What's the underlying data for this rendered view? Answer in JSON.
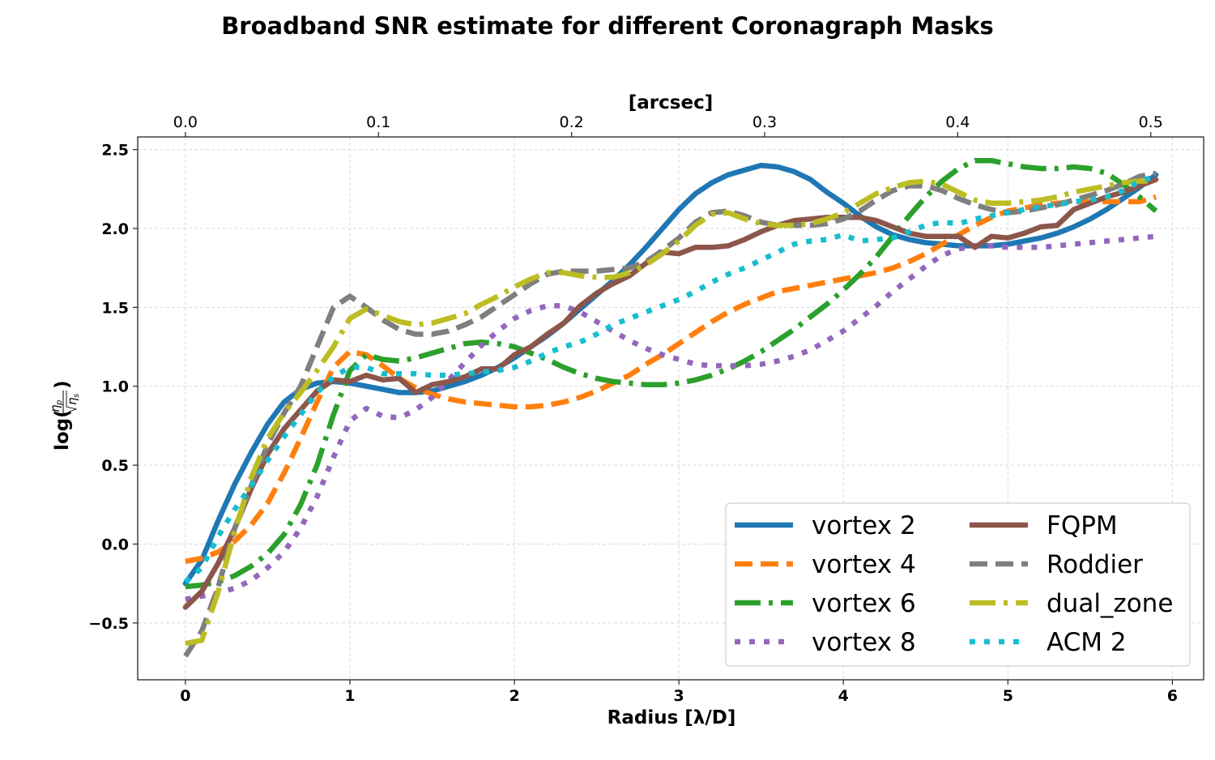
{
  "chart_data": {
    "type": "line",
    "title": "Broadband SNR estimate for different Coronagraph Masks",
    "xlabel": "Radius [λ/D]",
    "ylabel": "log(ηp/√ηs)",
    "ylabel_parts": {
      "prefix": "log(",
      "num": "η",
      "num_sub": "p",
      "den": "η",
      "den_sub": "s",
      "suffix": ")"
    },
    "secondary_xlabel": "[arcsec]",
    "xlim": [
      -0.29,
      6.19
    ],
    "ylim": [
      -0.86,
      2.58
    ],
    "arcsec_per_lambda_d": 0.0852,
    "grid": true,
    "legend_position": "lower-right",
    "legend_columns": 2,
    "x_ticks": [
      0,
      1,
      2,
      3,
      4,
      5,
      6
    ],
    "x_tick_labels": [
      "0",
      "1",
      "2",
      "3",
      "4",
      "5",
      "6"
    ],
    "y_ticks": [
      -0.5,
      0.0,
      0.5,
      1.0,
      1.5,
      2.0,
      2.5
    ],
    "y_tick_labels": [
      "−0.5",
      "0.0",
      "0.5",
      "1.0",
      "1.5",
      "2.0",
      "2.5"
    ],
    "top_ticks": [
      0.0,
      0.1,
      0.2,
      0.3,
      0.4,
      0.5
    ],
    "top_tick_labels": [
      "0.0",
      "0.1",
      "0.2",
      "0.3",
      "0.4",
      "0.5"
    ],
    "x": [
      0,
      0.1,
      0.2,
      0.3,
      0.4,
      0.5,
      0.6,
      0.7,
      0.8,
      0.9,
      1.0,
      1.1,
      1.2,
      1.3,
      1.4,
      1.5,
      1.6,
      1.7,
      1.8,
      1.9,
      2.0,
      2.1,
      2.2,
      2.3,
      2.4,
      2.5,
      2.6,
      2.7,
      2.8,
      2.9,
      3.0,
      3.1,
      3.2,
      3.3,
      3.4,
      3.5,
      3.6,
      3.7,
      3.8,
      3.9,
      4.0,
      4.1,
      4.2,
      4.3,
      4.4,
      4.5,
      4.6,
      4.7,
      4.8,
      4.9,
      5.0,
      5.1,
      5.2,
      5.3,
      5.4,
      5.5,
      5.6,
      5.7,
      5.8,
      5.9
    ],
    "series": [
      {
        "name": "vortex 2",
        "color": "#1f77b4",
        "style": "solid",
        "values": [
          -0.25,
          -0.1,
          0.15,
          0.38,
          0.58,
          0.76,
          0.9,
          0.98,
          1.02,
          1.03,
          1.02,
          1.0,
          0.98,
          0.96,
          0.96,
          0.97,
          1.0,
          1.03,
          1.07,
          1.12,
          1.18,
          1.25,
          1.32,
          1.4,
          1.49,
          1.58,
          1.67,
          1.77,
          1.88,
          2.0,
          2.12,
          2.22,
          2.29,
          2.34,
          2.37,
          2.4,
          2.39,
          2.36,
          2.31,
          2.23,
          2.16,
          2.08,
          2.01,
          1.96,
          1.93,
          1.91,
          1.9,
          1.89,
          1.89,
          1.89,
          1.9,
          1.92,
          1.94,
          1.97,
          2.01,
          2.06,
          2.12,
          2.19,
          2.26,
          2.34
        ]
      },
      {
        "name": "vortex 4",
        "color": "#ff7f0e",
        "style": "dashed",
        "values": [
          -0.11,
          -0.09,
          -0.05,
          0.02,
          0.12,
          0.26,
          0.45,
          0.67,
          0.9,
          1.12,
          1.22,
          1.2,
          1.13,
          1.05,
          0.99,
          0.95,
          0.92,
          0.9,
          0.89,
          0.88,
          0.87,
          0.87,
          0.88,
          0.9,
          0.93,
          0.97,
          1.02,
          1.07,
          1.14,
          1.2,
          1.27,
          1.34,
          1.41,
          1.47,
          1.52,
          1.56,
          1.6,
          1.62,
          1.64,
          1.66,
          1.68,
          1.7,
          1.72,
          1.75,
          1.79,
          1.84,
          1.9,
          1.96,
          2.02,
          2.07,
          2.11,
          2.13,
          2.15,
          2.16,
          2.17,
          2.17,
          2.17,
          2.17,
          2.17,
          2.2
        ]
      },
      {
        "name": "vortex 6",
        "color": "#2ca02c",
        "style": "dashdot",
        "values": [
          -0.27,
          -0.26,
          -0.24,
          -0.2,
          -0.14,
          -0.06,
          0.06,
          0.25,
          0.5,
          0.82,
          1.1,
          1.2,
          1.17,
          1.16,
          1.18,
          1.21,
          1.24,
          1.27,
          1.28,
          1.27,
          1.25,
          1.21,
          1.17,
          1.12,
          1.08,
          1.05,
          1.03,
          1.02,
          1.01,
          1.01,
          1.02,
          1.04,
          1.07,
          1.11,
          1.16,
          1.22,
          1.29,
          1.36,
          1.44,
          1.52,
          1.61,
          1.71,
          1.82,
          1.95,
          2.08,
          2.2,
          2.3,
          2.38,
          2.43,
          2.43,
          2.41,
          2.39,
          2.38,
          2.38,
          2.39,
          2.38,
          2.35,
          2.28,
          2.2,
          2.11
        ]
      },
      {
        "name": "vortex 8",
        "color": "#9467bd",
        "style": "dotted",
        "values": [
          -0.35,
          -0.33,
          -0.31,
          -0.28,
          -0.23,
          -0.15,
          -0.05,
          0.1,
          0.3,
          0.55,
          0.78,
          0.86,
          0.81,
          0.8,
          0.85,
          0.93,
          1.04,
          1.15,
          1.26,
          1.35,
          1.43,
          1.48,
          1.51,
          1.51,
          1.47,
          1.41,
          1.35,
          1.29,
          1.24,
          1.2,
          1.17,
          1.14,
          1.13,
          1.13,
          1.13,
          1.14,
          1.16,
          1.19,
          1.23,
          1.29,
          1.35,
          1.43,
          1.51,
          1.6,
          1.68,
          1.76,
          1.83,
          1.87,
          1.89,
          1.89,
          1.88,
          1.88,
          1.88,
          1.89,
          1.9,
          1.91,
          1.92,
          1.93,
          1.94,
          1.95
        ]
      },
      {
        "name": "FQPM",
        "color": "#8c564b",
        "style": "solid",
        "values": [
          -0.4,
          -0.3,
          -0.12,
          0.1,
          0.35,
          0.57,
          0.73,
          0.85,
          0.97,
          1.04,
          1.03,
          1.07,
          1.04,
          1.05,
          0.96,
          1.01,
          1.03,
          1.06,
          1.11,
          1.11,
          1.2,
          1.25,
          1.33,
          1.4,
          1.51,
          1.59,
          1.65,
          1.7,
          1.78,
          1.85,
          1.84,
          1.88,
          1.88,
          1.89,
          1.93,
          1.98,
          2.02,
          2.05,
          2.06,
          2.07,
          2.07,
          2.07,
          2.05,
          2.01,
          1.97,
          1.95,
          1.95,
          1.95,
          1.88,
          1.95,
          1.94,
          1.97,
          2.01,
          2.02,
          2.12,
          2.16,
          2.2,
          2.23,
          2.27,
          2.31
        ]
      },
      {
        "name": "Roddier",
        "color": "#7f7f7f",
        "style": "dashed",
        "values": [
          -0.71,
          -0.55,
          -0.27,
          0.1,
          0.37,
          0.63,
          0.83,
          1.0,
          1.25,
          1.5,
          1.57,
          1.5,
          1.42,
          1.36,
          1.33,
          1.33,
          1.35,
          1.39,
          1.44,
          1.51,
          1.58,
          1.65,
          1.71,
          1.73,
          1.73,
          1.73,
          1.74,
          1.75,
          1.79,
          1.86,
          1.94,
          2.04,
          2.1,
          2.11,
          2.08,
          2.04,
          2.02,
          2.02,
          2.02,
          2.03,
          2.06,
          2.11,
          2.18,
          2.24,
          2.27,
          2.27,
          2.24,
          2.19,
          2.15,
          2.12,
          2.1,
          2.11,
          2.13,
          2.15,
          2.18,
          2.21,
          2.24,
          2.28,
          2.33,
          2.35
        ]
      },
      {
        "name": "dual_zone",
        "color": "#bcbd22",
        "style": "dashdot",
        "values": [
          -0.63,
          -0.61,
          -0.3,
          0.08,
          0.42,
          0.67,
          0.83,
          0.96,
          1.1,
          1.25,
          1.43,
          1.49,
          1.45,
          1.41,
          1.39,
          1.4,
          1.43,
          1.46,
          1.52,
          1.57,
          1.63,
          1.68,
          1.72,
          1.72,
          1.7,
          1.69,
          1.69,
          1.72,
          1.77,
          1.84,
          1.92,
          2.02,
          2.09,
          2.1,
          2.06,
          2.03,
          2.02,
          2.02,
          2.03,
          2.06,
          2.1,
          2.16,
          2.22,
          2.26,
          2.29,
          2.3,
          2.28,
          2.23,
          2.18,
          2.16,
          2.16,
          2.17,
          2.18,
          2.2,
          2.23,
          2.25,
          2.27,
          2.29,
          2.3,
          2.3
        ]
      },
      {
        "name": "ACM 2",
        "color": "#17becf",
        "style": "dotted",
        "values": [
          -0.24,
          -0.15,
          0.05,
          0.22,
          0.37,
          0.53,
          0.68,
          0.82,
          0.96,
          1.06,
          1.12,
          1.12,
          1.08,
          1.08,
          1.08,
          1.07,
          1.07,
          1.08,
          1.09,
          1.1,
          1.12,
          1.16,
          1.21,
          1.25,
          1.28,
          1.33,
          1.39,
          1.43,
          1.47,
          1.51,
          1.55,
          1.6,
          1.66,
          1.71,
          1.75,
          1.8,
          1.85,
          1.9,
          1.92,
          1.93,
          1.96,
          1.92,
          1.93,
          1.94,
          1.98,
          2.02,
          2.04,
          2.03,
          2.06,
          2.08,
          2.1,
          2.12,
          2.14,
          2.15,
          2.17,
          2.18,
          2.2,
          2.24,
          2.3,
          2.33
        ]
      }
    ]
  }
}
